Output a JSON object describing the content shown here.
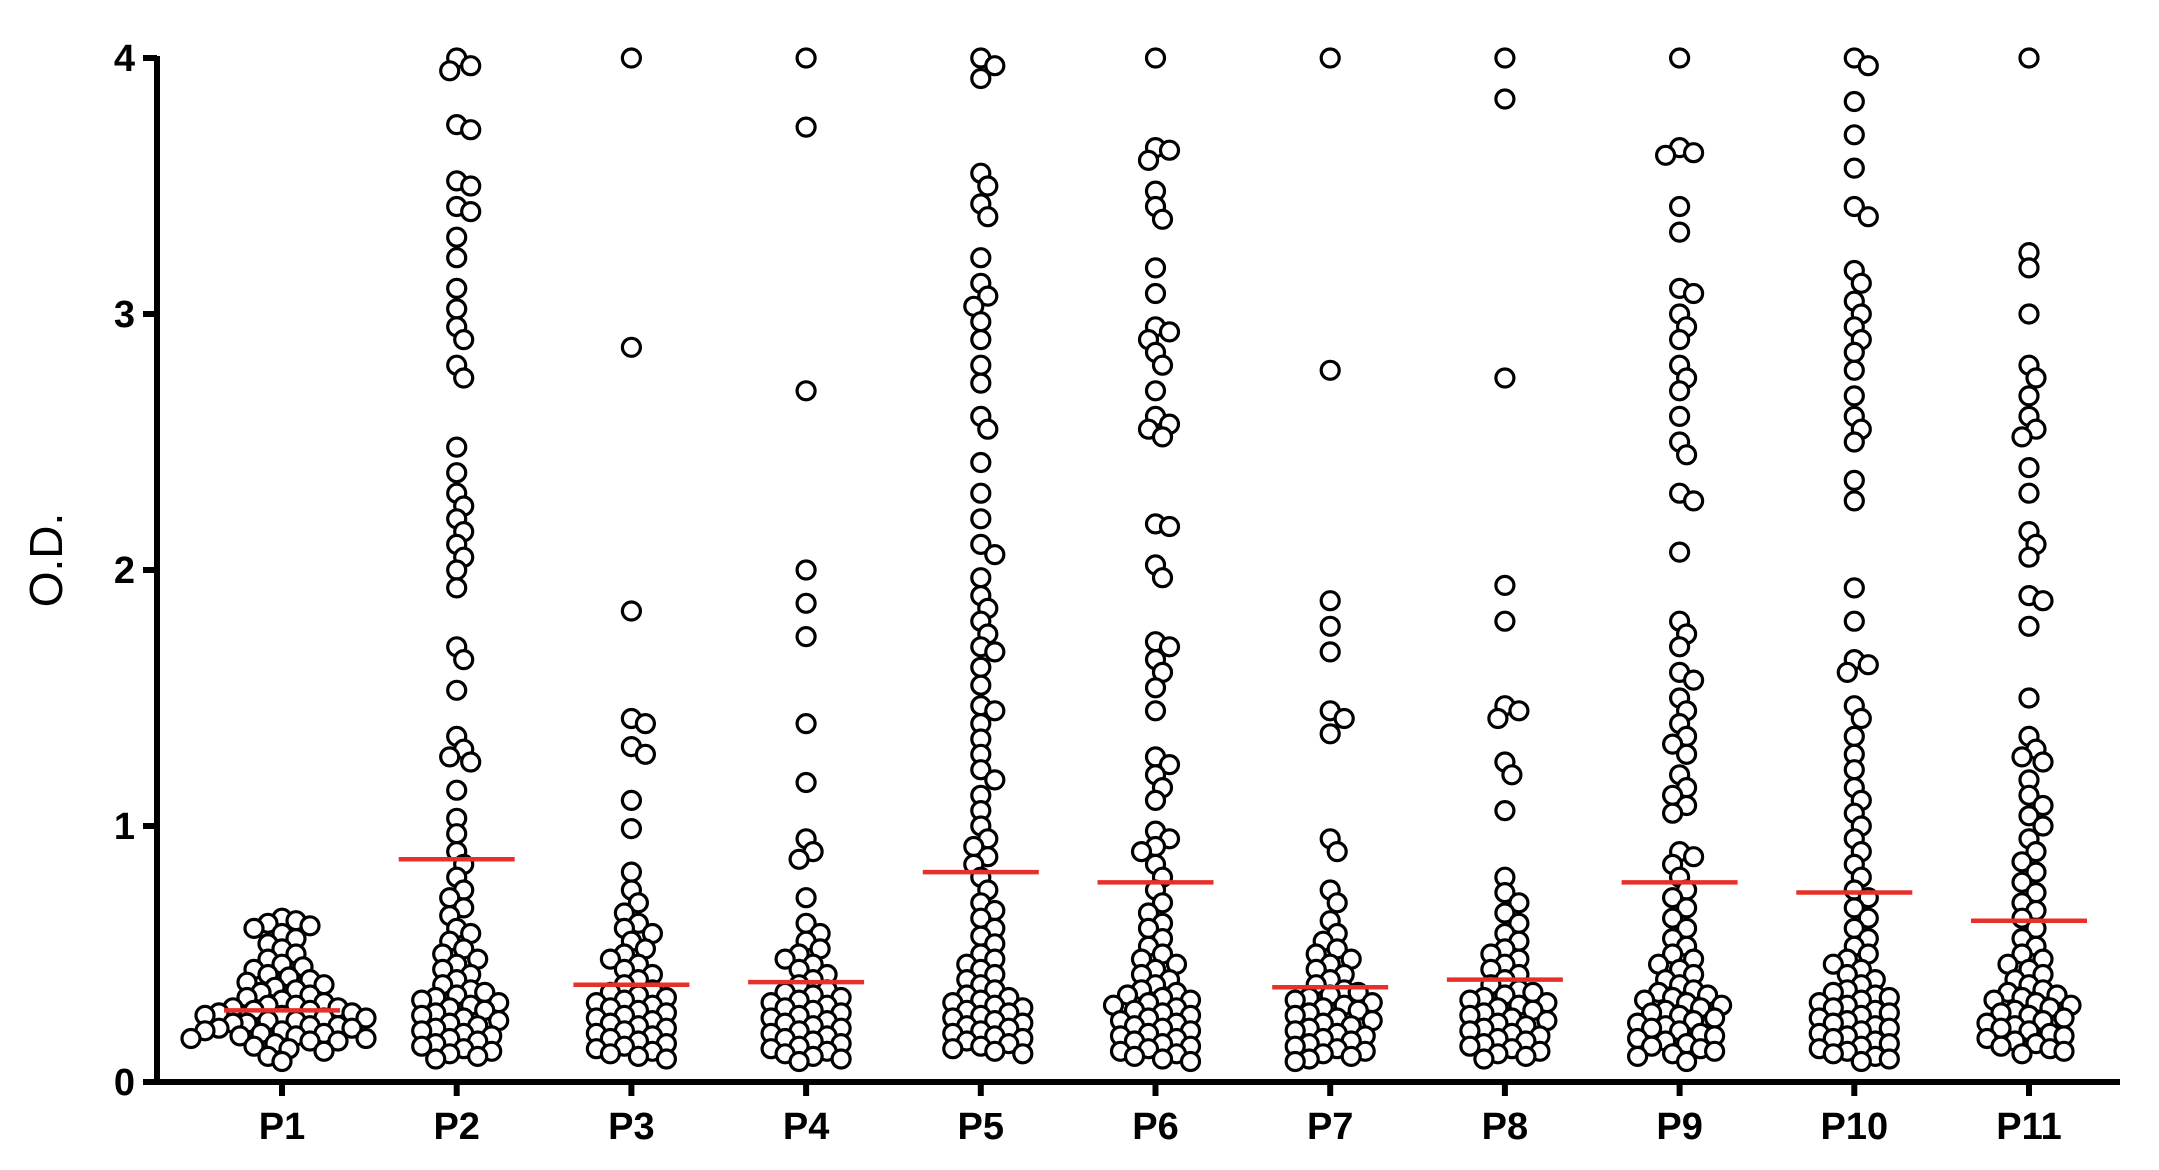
{
  "chart_data": {
    "type": "scatter",
    "subtype": "dot plot with mean lines",
    "ylabel": "O.D.",
    "ylim": [
      0,
      4
    ],
    "yticks": [
      "0",
      "1",
      "2",
      "3",
      "4"
    ],
    "categories": [
      "P1",
      "P2",
      "P3",
      "P4",
      "P5",
      "P6",
      "P7",
      "P8",
      "P9",
      "P10",
      "P11"
    ],
    "mean_line_color": "#e8302a",
    "marker": {
      "shape": "open-circle",
      "stroke": "#000000",
      "fill": "#ffffff"
    },
    "series": [
      {
        "category": "P1",
        "mean": 0.28,
        "values": [
          0.64,
          0.63,
          0.62,
          0.61,
          0.6,
          0.58,
          0.56,
          0.54,
          0.52,
          0.5,
          0.48,
          0.46,
          0.45,
          0.44,
          0.42,
          0.41,
          0.4,
          0.39,
          0.38,
          0.37,
          0.36,
          0.35,
          0.34,
          0.33,
          0.32,
          0.31,
          0.3,
          0.3,
          0.29,
          0.29,
          0.28,
          0.28,
          0.27,
          0.27,
          0.26,
          0.26,
          0.25,
          0.25,
          0.24,
          0.24,
          0.23,
          0.23,
          0.22,
          0.22,
          0.21,
          0.21,
          0.2,
          0.2,
          0.19,
          0.19,
          0.18,
          0.18,
          0.17,
          0.17,
          0.16,
          0.16,
          0.15,
          0.14,
          0.13,
          0.12,
          0.1,
          0.08
        ]
      },
      {
        "category": "P2",
        "mean": 0.87,
        "values": [
          4.0,
          3.97,
          3.95,
          3.74,
          3.72,
          3.52,
          3.5,
          3.42,
          3.4,
          3.3,
          3.22,
          3.1,
          3.02,
          2.95,
          2.9,
          2.8,
          2.75,
          2.48,
          2.38,
          2.3,
          2.25,
          2.2,
          2.15,
          2.1,
          2.05,
          2.0,
          1.93,
          1.7,
          1.65,
          1.53,
          1.35,
          1.3,
          1.27,
          1.25,
          1.14,
          1.03,
          0.97,
          0.9,
          0.85,
          0.8,
          0.75,
          0.72,
          0.68,
          0.65,
          0.6,
          0.58,
          0.55,
          0.52,
          0.5,
          0.48,
          0.46,
          0.44,
          0.42,
          0.4,
          0.38,
          0.36,
          0.35,
          0.34,
          0.33,
          0.32,
          0.31,
          0.3,
          0.29,
          0.28,
          0.27,
          0.26,
          0.25,
          0.24,
          0.23,
          0.22,
          0.21,
          0.2,
          0.19,
          0.18,
          0.17,
          0.16,
          0.15,
          0.14,
          0.13,
          0.12,
          0.11,
          0.1,
          0.09
        ]
      },
      {
        "category": "P3",
        "mean": 0.38,
        "values": [
          4.0,
          2.87,
          1.84,
          1.42,
          1.4,
          1.31,
          1.28,
          1.1,
          0.99,
          0.82,
          0.75,
          0.7,
          0.66,
          0.62,
          0.6,
          0.58,
          0.55,
          0.52,
          0.5,
          0.48,
          0.46,
          0.44,
          0.42,
          0.4,
          0.38,
          0.36,
          0.35,
          0.34,
          0.33,
          0.32,
          0.31,
          0.3,
          0.29,
          0.28,
          0.27,
          0.26,
          0.25,
          0.24,
          0.23,
          0.22,
          0.21,
          0.2,
          0.19,
          0.18,
          0.17,
          0.16,
          0.15,
          0.14,
          0.13,
          0.12,
          0.11,
          0.1,
          0.09
        ]
      },
      {
        "category": "P4",
        "mean": 0.39,
        "values": [
          4.0,
          3.73,
          2.7,
          2.0,
          1.87,
          1.74,
          1.4,
          1.17,
          0.95,
          0.9,
          0.87,
          0.72,
          0.62,
          0.58,
          0.55,
          0.52,
          0.5,
          0.48,
          0.46,
          0.44,
          0.42,
          0.4,
          0.38,
          0.36,
          0.35,
          0.34,
          0.33,
          0.32,
          0.31,
          0.3,
          0.29,
          0.28,
          0.27,
          0.26,
          0.25,
          0.24,
          0.23,
          0.22,
          0.21,
          0.2,
          0.19,
          0.18,
          0.17,
          0.16,
          0.15,
          0.14,
          0.13,
          0.12,
          0.11,
          0.1,
          0.09,
          0.08
        ]
      },
      {
        "category": "P5",
        "mean": 0.82,
        "values": [
          4.0,
          3.97,
          3.92,
          3.55,
          3.5,
          3.43,
          3.38,
          3.22,
          3.12,
          3.07,
          3.03,
          2.97,
          2.9,
          2.8,
          2.73,
          2.6,
          2.55,
          2.42,
          2.3,
          2.2,
          2.1,
          2.06,
          1.97,
          1.9,
          1.85,
          1.8,
          1.75,
          1.7,
          1.68,
          1.62,
          1.55,
          1.47,
          1.45,
          1.4,
          1.34,
          1.28,
          1.22,
          1.18,
          1.12,
          1.06,
          1.0,
          0.95,
          0.92,
          0.88,
          0.85,
          0.8,
          0.75,
          0.7,
          0.67,
          0.64,
          0.6,
          0.57,
          0.54,
          0.5,
          0.48,
          0.46,
          0.44,
          0.42,
          0.4,
          0.38,
          0.36,
          0.34,
          0.33,
          0.32,
          0.31,
          0.3,
          0.29,
          0.28,
          0.27,
          0.26,
          0.25,
          0.24,
          0.23,
          0.22,
          0.21,
          0.2,
          0.19,
          0.18,
          0.17,
          0.16,
          0.15,
          0.14,
          0.13,
          0.12,
          0.11
        ]
      },
      {
        "category": "P6",
        "mean": 0.78,
        "values": [
          4.0,
          3.65,
          3.64,
          3.6,
          3.48,
          3.42,
          3.37,
          3.18,
          3.08,
          2.95,
          2.93,
          2.9,
          2.85,
          2.8,
          2.7,
          2.6,
          2.57,
          2.55,
          2.52,
          2.18,
          2.17,
          2.02,
          1.97,
          1.72,
          1.7,
          1.65,
          1.6,
          1.54,
          1.45,
          1.27,
          1.24,
          1.2,
          1.15,
          1.1,
          0.98,
          0.95,
          0.92,
          0.9,
          0.85,
          0.8,
          0.75,
          0.7,
          0.66,
          0.62,
          0.6,
          0.56,
          0.53,
          0.5,
          0.48,
          0.46,
          0.44,
          0.42,
          0.4,
          0.38,
          0.36,
          0.35,
          0.34,
          0.33,
          0.32,
          0.31,
          0.3,
          0.29,
          0.28,
          0.27,
          0.26,
          0.25,
          0.24,
          0.23,
          0.22,
          0.21,
          0.2,
          0.19,
          0.18,
          0.17,
          0.16,
          0.15,
          0.14,
          0.13,
          0.12,
          0.11,
          0.1,
          0.09,
          0.08
        ]
      },
      {
        "category": "P7",
        "mean": 0.37,
        "values": [
          4.0,
          2.78,
          1.88,
          1.78,
          1.68,
          1.45,
          1.42,
          1.36,
          0.95,
          0.9,
          0.75,
          0.7,
          0.63,
          0.58,
          0.55,
          0.52,
          0.5,
          0.48,
          0.46,
          0.44,
          0.42,
          0.4,
          0.38,
          0.36,
          0.35,
          0.34,
          0.33,
          0.32,
          0.31,
          0.3,
          0.29,
          0.28,
          0.27,
          0.26,
          0.25,
          0.24,
          0.23,
          0.22,
          0.21,
          0.2,
          0.19,
          0.18,
          0.17,
          0.16,
          0.15,
          0.14,
          0.13,
          0.12,
          0.11,
          0.1,
          0.09,
          0.08
        ]
      },
      {
        "category": "P8",
        "mean": 0.4,
        "values": [
          4.0,
          3.84,
          2.75,
          1.94,
          1.8,
          1.47,
          1.45,
          1.42,
          1.25,
          1.2,
          1.06,
          0.8,
          0.74,
          0.7,
          0.66,
          0.62,
          0.58,
          0.55,
          0.52,
          0.5,
          0.48,
          0.46,
          0.44,
          0.42,
          0.4,
          0.38,
          0.36,
          0.35,
          0.34,
          0.33,
          0.32,
          0.31,
          0.3,
          0.29,
          0.28,
          0.27,
          0.26,
          0.25,
          0.24,
          0.23,
          0.22,
          0.21,
          0.2,
          0.19,
          0.18,
          0.17,
          0.16,
          0.15,
          0.14,
          0.13,
          0.12,
          0.11,
          0.1,
          0.09
        ]
      },
      {
        "category": "P9",
        "mean": 0.78,
        "values": [
          4.0,
          3.65,
          3.63,
          3.62,
          3.42,
          3.32,
          3.1,
          3.08,
          3.0,
          2.95,
          2.9,
          2.8,
          2.75,
          2.7,
          2.6,
          2.5,
          2.45,
          2.3,
          2.27,
          2.07,
          1.8,
          1.75,
          1.7,
          1.6,
          1.57,
          1.5,
          1.45,
          1.4,
          1.35,
          1.32,
          1.28,
          1.2,
          1.15,
          1.12,
          1.08,
          1.05,
          0.9,
          0.88,
          0.85,
          0.8,
          0.75,
          0.72,
          0.68,
          0.64,
          0.6,
          0.56,
          0.53,
          0.5,
          0.48,
          0.46,
          0.44,
          0.42,
          0.4,
          0.38,
          0.36,
          0.35,
          0.34,
          0.33,
          0.32,
          0.31,
          0.3,
          0.29,
          0.28,
          0.27,
          0.26,
          0.25,
          0.24,
          0.23,
          0.22,
          0.21,
          0.2,
          0.19,
          0.18,
          0.17,
          0.16,
          0.15,
          0.14,
          0.13,
          0.12,
          0.11,
          0.1,
          0.08
        ]
      },
      {
        "category": "P10",
        "mean": 0.74,
        "values": [
          4.0,
          3.97,
          3.83,
          3.7,
          3.57,
          3.42,
          3.38,
          3.17,
          3.12,
          3.05,
          3.0,
          2.95,
          2.9,
          2.85,
          2.78,
          2.68,
          2.6,
          2.55,
          2.5,
          2.35,
          2.27,
          1.93,
          1.8,
          1.65,
          1.63,
          1.6,
          1.47,
          1.42,
          1.35,
          1.28,
          1.22,
          1.15,
          1.1,
          1.05,
          1.0,
          0.95,
          0.9,
          0.85,
          0.8,
          0.75,
          0.72,
          0.68,
          0.64,
          0.6,
          0.56,
          0.53,
          0.5,
          0.48,
          0.46,
          0.44,
          0.42,
          0.4,
          0.38,
          0.36,
          0.35,
          0.34,
          0.33,
          0.32,
          0.31,
          0.3,
          0.29,
          0.28,
          0.27,
          0.26,
          0.25,
          0.24,
          0.23,
          0.22,
          0.21,
          0.2,
          0.19,
          0.18,
          0.17,
          0.16,
          0.15,
          0.14,
          0.13,
          0.12,
          0.11,
          0.1,
          0.09,
          0.08
        ]
      },
      {
        "category": "P11",
        "mean": 0.63,
        "values": [
          4.0,
          3.24,
          3.18,
          3.0,
          2.8,
          2.75,
          2.68,
          2.6,
          2.55,
          2.52,
          2.4,
          2.3,
          2.15,
          2.1,
          2.05,
          1.9,
          1.88,
          1.78,
          1.5,
          1.35,
          1.3,
          1.27,
          1.25,
          1.18,
          1.12,
          1.08,
          1.04,
          1.0,
          0.95,
          0.9,
          0.86,
          0.82,
          0.78,
          0.74,
          0.7,
          0.67,
          0.64,
          0.6,
          0.56,
          0.53,
          0.5,
          0.48,
          0.46,
          0.44,
          0.42,
          0.4,
          0.38,
          0.36,
          0.35,
          0.34,
          0.33,
          0.32,
          0.31,
          0.3,
          0.29,
          0.28,
          0.27,
          0.26,
          0.25,
          0.24,
          0.23,
          0.22,
          0.21,
          0.2,
          0.19,
          0.18,
          0.17,
          0.16,
          0.15,
          0.14,
          0.13,
          0.12,
          0.11
        ]
      }
    ]
  }
}
